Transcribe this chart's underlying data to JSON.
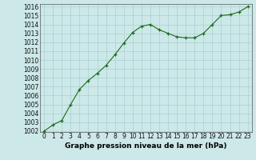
{
  "x": [
    0,
    1,
    2,
    3,
    4,
    5,
    6,
    7,
    8,
    9,
    10,
    11,
    12,
    13,
    14,
    15,
    16,
    17,
    18,
    19,
    20,
    21,
    22,
    23
  ],
  "y": [
    1002.0,
    1002.7,
    1003.2,
    1005.0,
    1006.7,
    1007.7,
    1008.5,
    1009.4,
    1010.6,
    1011.9,
    1013.1,
    1013.8,
    1014.0,
    1013.4,
    1013.0,
    1012.6,
    1012.5,
    1012.5,
    1013.0,
    1014.0,
    1015.0,
    1015.1,
    1015.4,
    1016.0
  ],
  "line_color": "#1a6b1a",
  "marker_color": "#1a6b1a",
  "bg_color": "#cce8e8",
  "grid_color": "#aad0d0",
  "title": "Graphe pression niveau de la mer (hPa)",
  "ylim": [
    1002,
    1016
  ],
  "xlim": [
    -0.5,
    23.5
  ],
  "yticks": [
    1002,
    1003,
    1004,
    1005,
    1006,
    1007,
    1008,
    1009,
    1010,
    1011,
    1012,
    1013,
    1014,
    1015,
    1016
  ],
  "xticks": [
    0,
    1,
    2,
    3,
    4,
    5,
    6,
    7,
    8,
    9,
    10,
    11,
    12,
    13,
    14,
    15,
    16,
    17,
    18,
    19,
    20,
    21,
    22,
    23
  ],
  "xtick_labels": [
    "0",
    "1",
    "2",
    "3",
    "4",
    "5",
    "6",
    "7",
    "8",
    "9",
    "10",
    "11",
    "12",
    "13",
    "14",
    "15",
    "16",
    "17",
    "18",
    "19",
    "20",
    "21",
    "22",
    "23"
  ],
  "title_fontsize": 6.5,
  "tick_fontsize": 5.5
}
